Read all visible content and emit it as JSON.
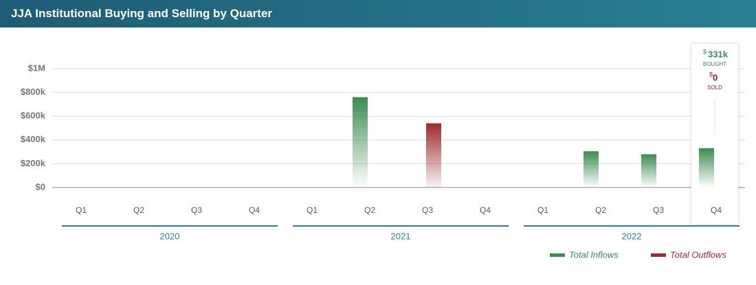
{
  "header": {
    "title": "JJA Institutional Buying and Selling by Quarter"
  },
  "chart_data": {
    "type": "bar",
    "categories": [
      "Q1",
      "Q2",
      "Q3",
      "Q4",
      "Q1",
      "Q2",
      "Q3",
      "Q4",
      "Q1",
      "Q2",
      "Q3",
      "Q4"
    ],
    "groups": [
      "2020",
      "2021",
      "2022"
    ],
    "series": [
      {
        "name": "Total Inflows",
        "color": "#3a8d4f",
        "values": [
          0,
          0,
          0,
          0,
          0,
          760000,
          0,
          0,
          0,
          305000,
          280000,
          331000
        ]
      },
      {
        "name": "Total Outflows",
        "color": "#9e2a2a",
        "values": [
          0,
          0,
          0,
          0,
          0,
          0,
          540000,
          0,
          0,
          0,
          0,
          0
        ]
      }
    ],
    "ylim": [
      0,
      1000000
    ],
    "yticks": [
      {
        "value": 0,
        "label": "$0"
      },
      {
        "value": 200000,
        "label": "$200k"
      },
      {
        "value": 400000,
        "label": "$400k"
      },
      {
        "value": 600000,
        "label": "$600k"
      },
      {
        "value": 800000,
        "label": "$800k"
      },
      {
        "value": 1000000,
        "label": "$1M"
      }
    ],
    "grid": true,
    "tooltip": {
      "currency": "$",
      "bought": "331k",
      "bought_label": "BOUGHT",
      "sold": "0",
      "sold_label": "SOLD"
    }
  }
}
